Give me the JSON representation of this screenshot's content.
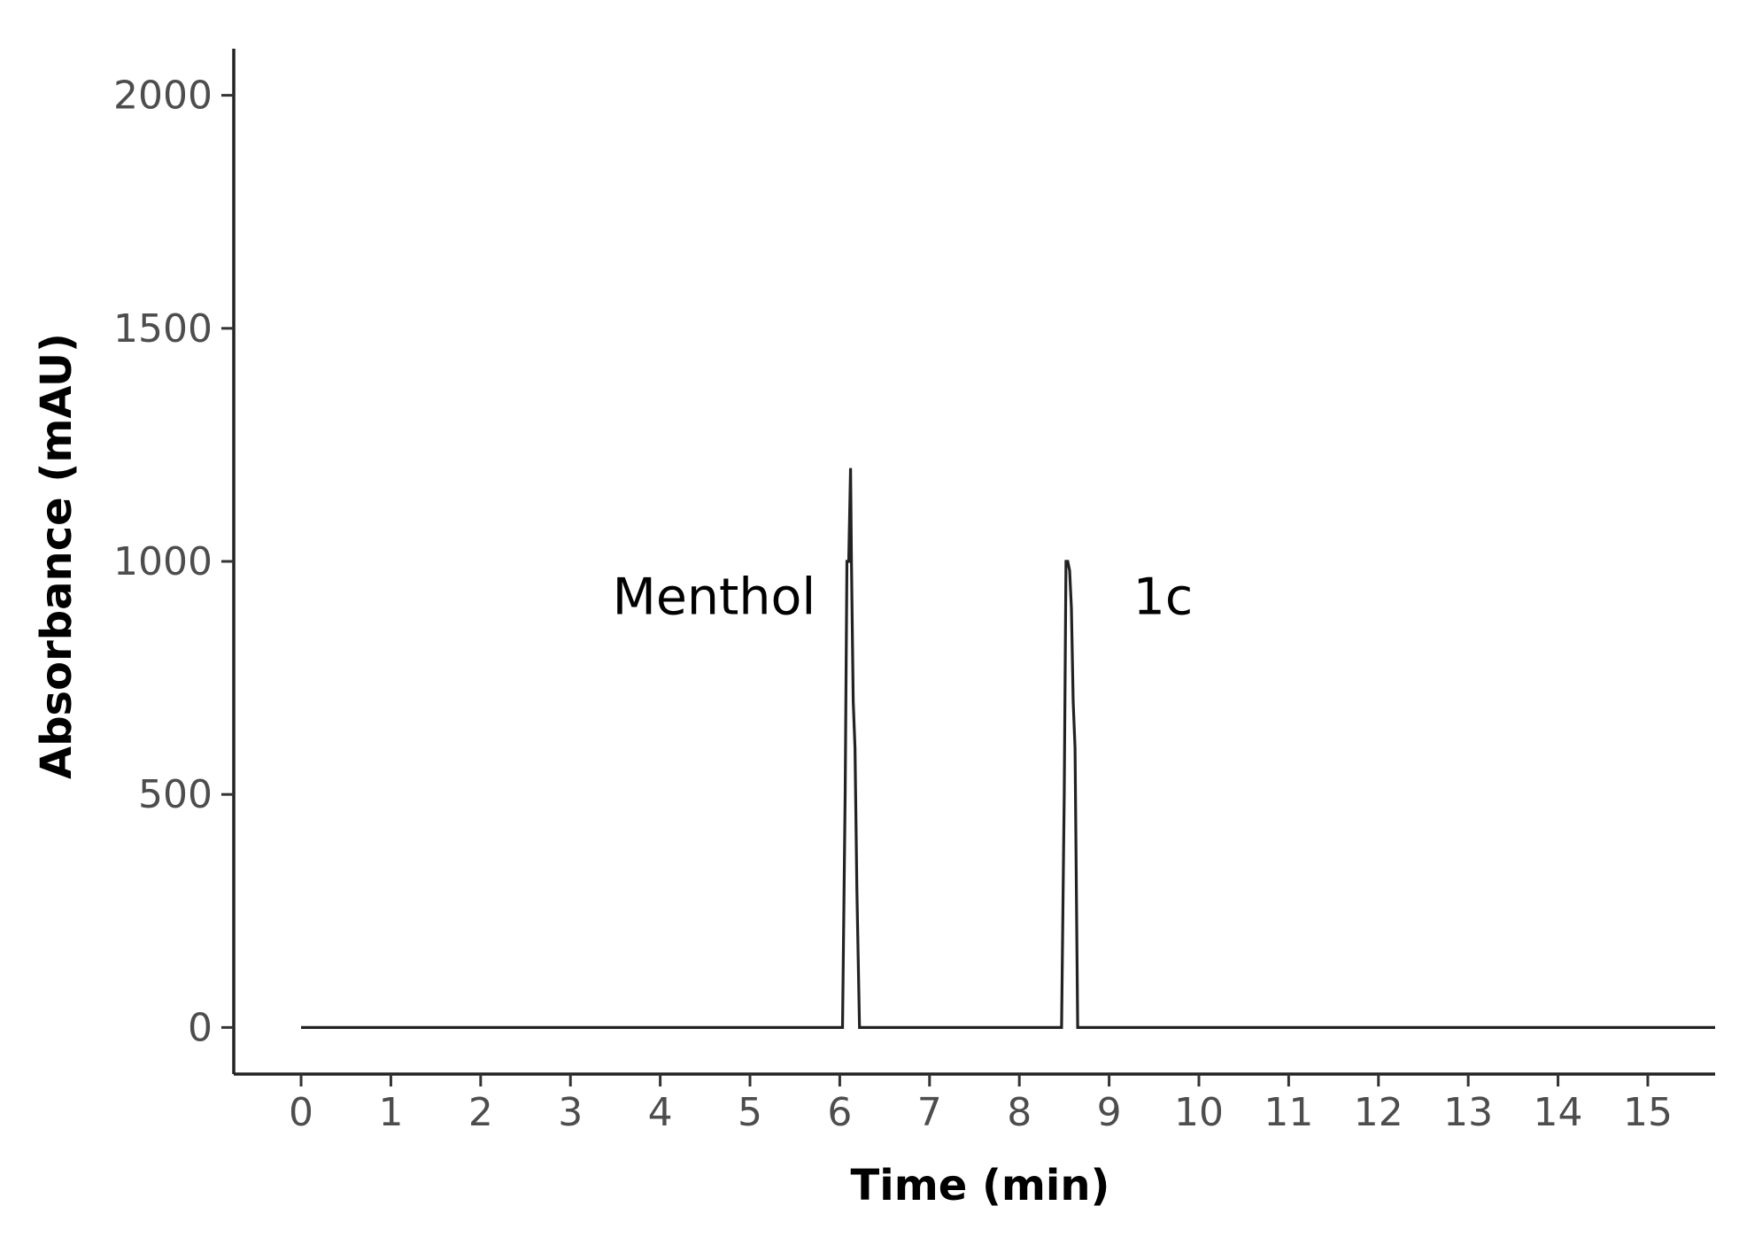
{
  "chart_data": {
    "type": "line",
    "xlabel": "Time (min)",
    "ylabel": "Absorbance (mAU)",
    "xlim": [
      -0.75,
      15.75
    ],
    "ylim": [
      -100,
      2100
    ],
    "x_ticks": [
      0,
      1,
      2,
      3,
      4,
      5,
      6,
      7,
      8,
      9,
      10,
      11,
      12,
      13,
      14,
      15
    ],
    "x_tick_labels": [
      "0",
      "1",
      "2",
      "3",
      "4",
      "5",
      "6",
      "7",
      "8",
      "9",
      "10",
      "11",
      "12",
      "13",
      "14",
      "15"
    ],
    "y_ticks": [
      0,
      500,
      1000,
      1500,
      2000
    ],
    "y_tick_labels": [
      "0",
      "500",
      "1000",
      "1500",
      "2000"
    ],
    "grid": false,
    "series": [
      {
        "color": "#222222",
        "x": [
          0,
          6.03,
          6.06,
          6.08,
          6.1,
          6.12,
          6.13,
          6.15,
          6.17,
          6.19,
          6.22,
          8.47,
          8.5,
          8.52,
          8.54,
          8.56,
          8.58,
          8.6,
          8.62,
          8.65,
          15.75
        ],
        "y": [
          0,
          0,
          500,
          1000,
          1000,
          1200,
          1000,
          700,
          600,
          300,
          0,
          0,
          500,
          1000,
          1000,
          980,
          900,
          700,
          600,
          0,
          0
        ]
      }
    ],
    "annotations": [
      {
        "text": "Menthol",
        "x": 4.6,
        "y": 925
      },
      {
        "text": "1c",
        "x": 9.6,
        "y": 925
      }
    ]
  }
}
